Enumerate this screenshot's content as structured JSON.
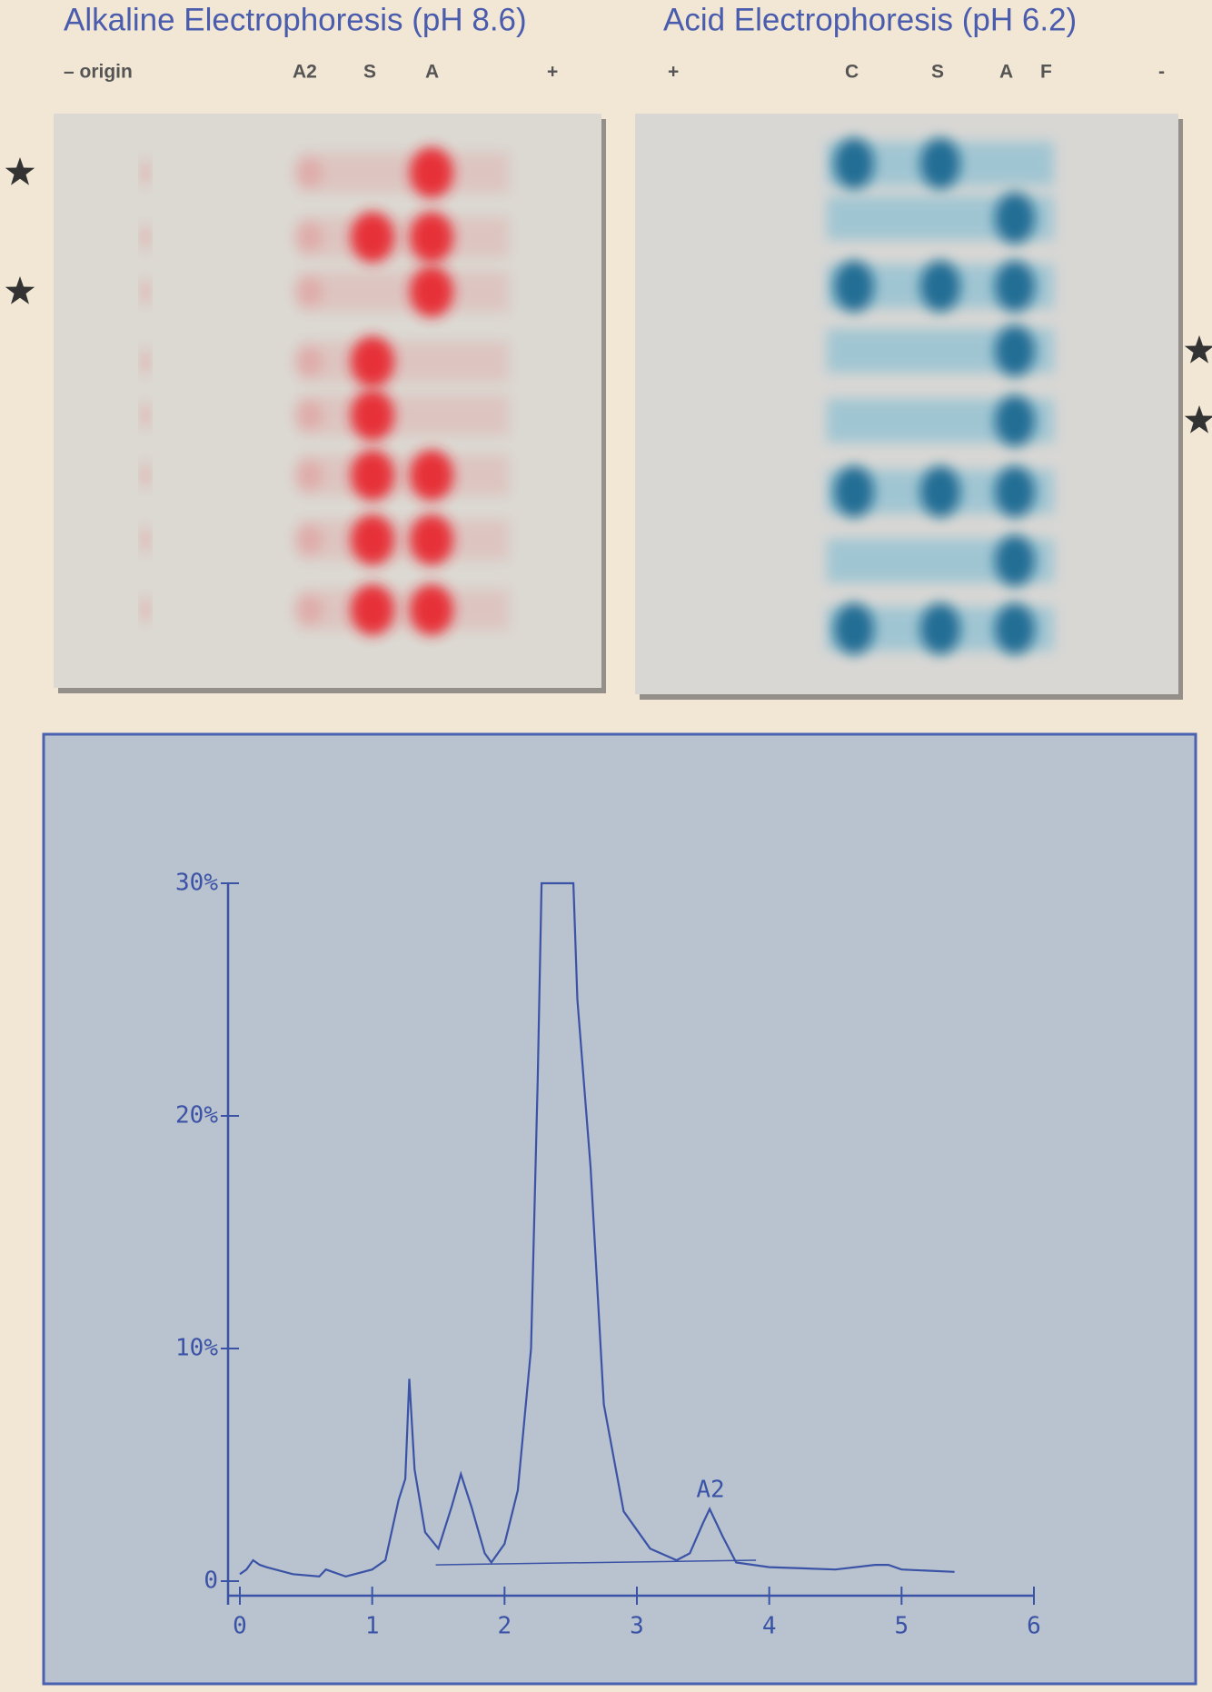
{
  "gels": [
    {
      "title": "Alkaline Electrophoresis (pH 8.6)",
      "labels": [
        "– origin",
        "A2",
        "S",
        "A",
        "+"
      ]
    },
    {
      "title": "Acid Electrophoresis (pH 6.2)",
      "labels": [
        "+",
        "C",
        "S",
        "A",
        "F",
        "-"
      ]
    }
  ],
  "chart_data": {
    "type": "line",
    "color": "#3b53a6",
    "x": [
      0,
      0.05,
      0.1,
      0.15,
      0.2,
      0.4,
      0.6,
      0.65,
      0.8,
      1.0,
      1.1,
      1.2,
      1.25,
      1.28,
      1.32,
      1.4,
      1.5,
      1.6,
      1.67,
      1.75,
      1.85,
      1.9,
      2.0,
      2.1,
      2.2,
      2.25,
      2.28,
      2.52,
      2.55,
      2.65,
      2.75,
      2.9,
      3.1,
      3.3,
      3.4,
      3.5,
      3.55,
      3.65,
      3.75,
      4.0,
      4.5,
      4.8,
      4.9,
      5.0,
      5.4
    ],
    "values": [
      0.3,
      0.5,
      0.9,
      0.7,
      0.6,
      0.3,
      0.2,
      0.5,
      0.2,
      0.5,
      0.9,
      3.5,
      4.4,
      8.7,
      4.8,
      2.1,
      1.4,
      3.2,
      4.6,
      3.2,
      1.2,
      0.8,
      1.6,
      3.9,
      10,
      21.5,
      30,
      30,
      25,
      17.8,
      7.6,
      3,
      1.4,
      0.9,
      1.2,
      2.5,
      3.1,
      1.9,
      0.8,
      0.6,
      0.5,
      0.7,
      0.7,
      0.5,
      0.4
    ],
    "xlim": [
      0,
      6
    ],
    "xticks": [
      0,
      1,
      2,
      3,
      4,
      5,
      6
    ],
    "ylim": [
      0,
      30
    ],
    "yticks": [
      0,
      {
        "value": 10,
        "label": "10%"
      },
      {
        "value": 20,
        "label": "20%"
      },
      {
        "value": 30,
        "label": "30%"
      }
    ],
    "annotations": [
      "A2"
    ]
  }
}
